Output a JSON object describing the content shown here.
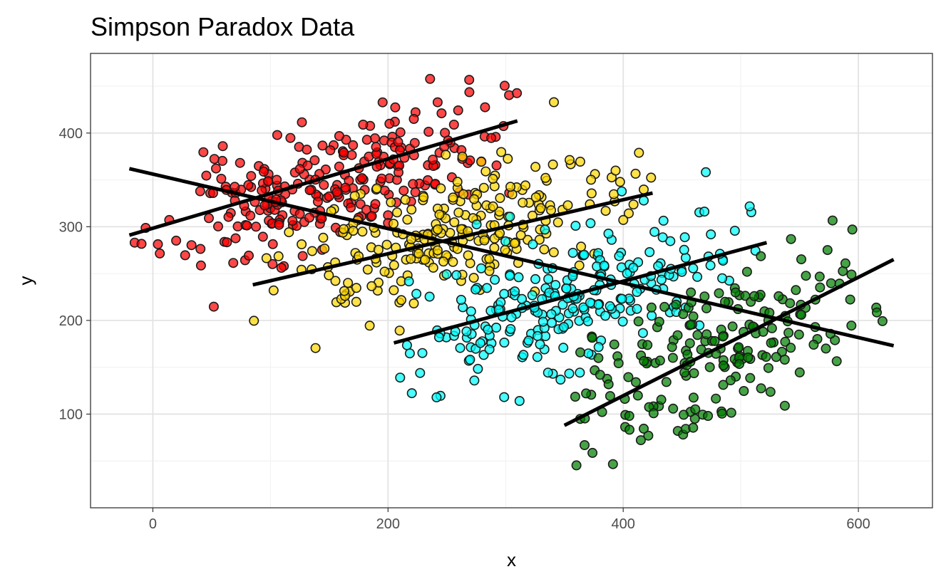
{
  "chart_data": {
    "type": "scatter",
    "title": "Simpson Paradox Data",
    "xlabel": "x",
    "ylabel": "y",
    "xlim": [
      -53,
      663
    ],
    "ylim": [
      0,
      485
    ],
    "x_ticks": [
      0,
      200,
      400,
      600
    ],
    "y_ticks": [
      100,
      200,
      300,
      400
    ],
    "grid": true,
    "theme": "bw",
    "point_stroke": "#1a1a1a",
    "series": [
      {
        "color": "#ff0000",
        "center": [
          150,
          345
        ],
        "sd": [
          70,
          42
        ],
        "corr": 0.62,
        "n": 260,
        "x_range": [
          -20,
          310
        ],
        "seed": 11,
        "fit": {
          "x": [
            -20,
            310
          ],
          "y": [
            291,
            413
          ]
        }
      },
      {
        "color": "#ffd700",
        "center": [
          250,
          290
        ],
        "sd": [
          72,
          42
        ],
        "corr": 0.58,
        "n": 250,
        "x_range": [
          85,
          425
        ],
        "seed": 23,
        "fit": {
          "x": [
            85,
            425
          ],
          "y": [
            238,
            336
          ]
        }
      },
      {
        "color": "#00ffff",
        "center": [
          360,
          225
        ],
        "sd": [
          72,
          42
        ],
        "corr": 0.58,
        "n": 250,
        "x_range": [
          205,
          520
        ],
        "seed": 37,
        "fit": {
          "x": [
            205,
            522
          ],
          "y": [
            176,
            283
          ]
        }
      },
      {
        "color": "#008000",
        "center": [
          470,
          165
        ],
        "sd": [
          72,
          50
        ],
        "corr": 0.62,
        "n": 200,
        "x_range": [
          350,
          630
        ],
        "seed": 53,
        "fit": {
          "x": [
            350,
            630
          ],
          "y": [
            88,
            265
          ]
        }
      }
    ],
    "overall_fit": {
      "x": [
        -20,
        630
      ],
      "y": [
        362,
        173
      ]
    }
  }
}
